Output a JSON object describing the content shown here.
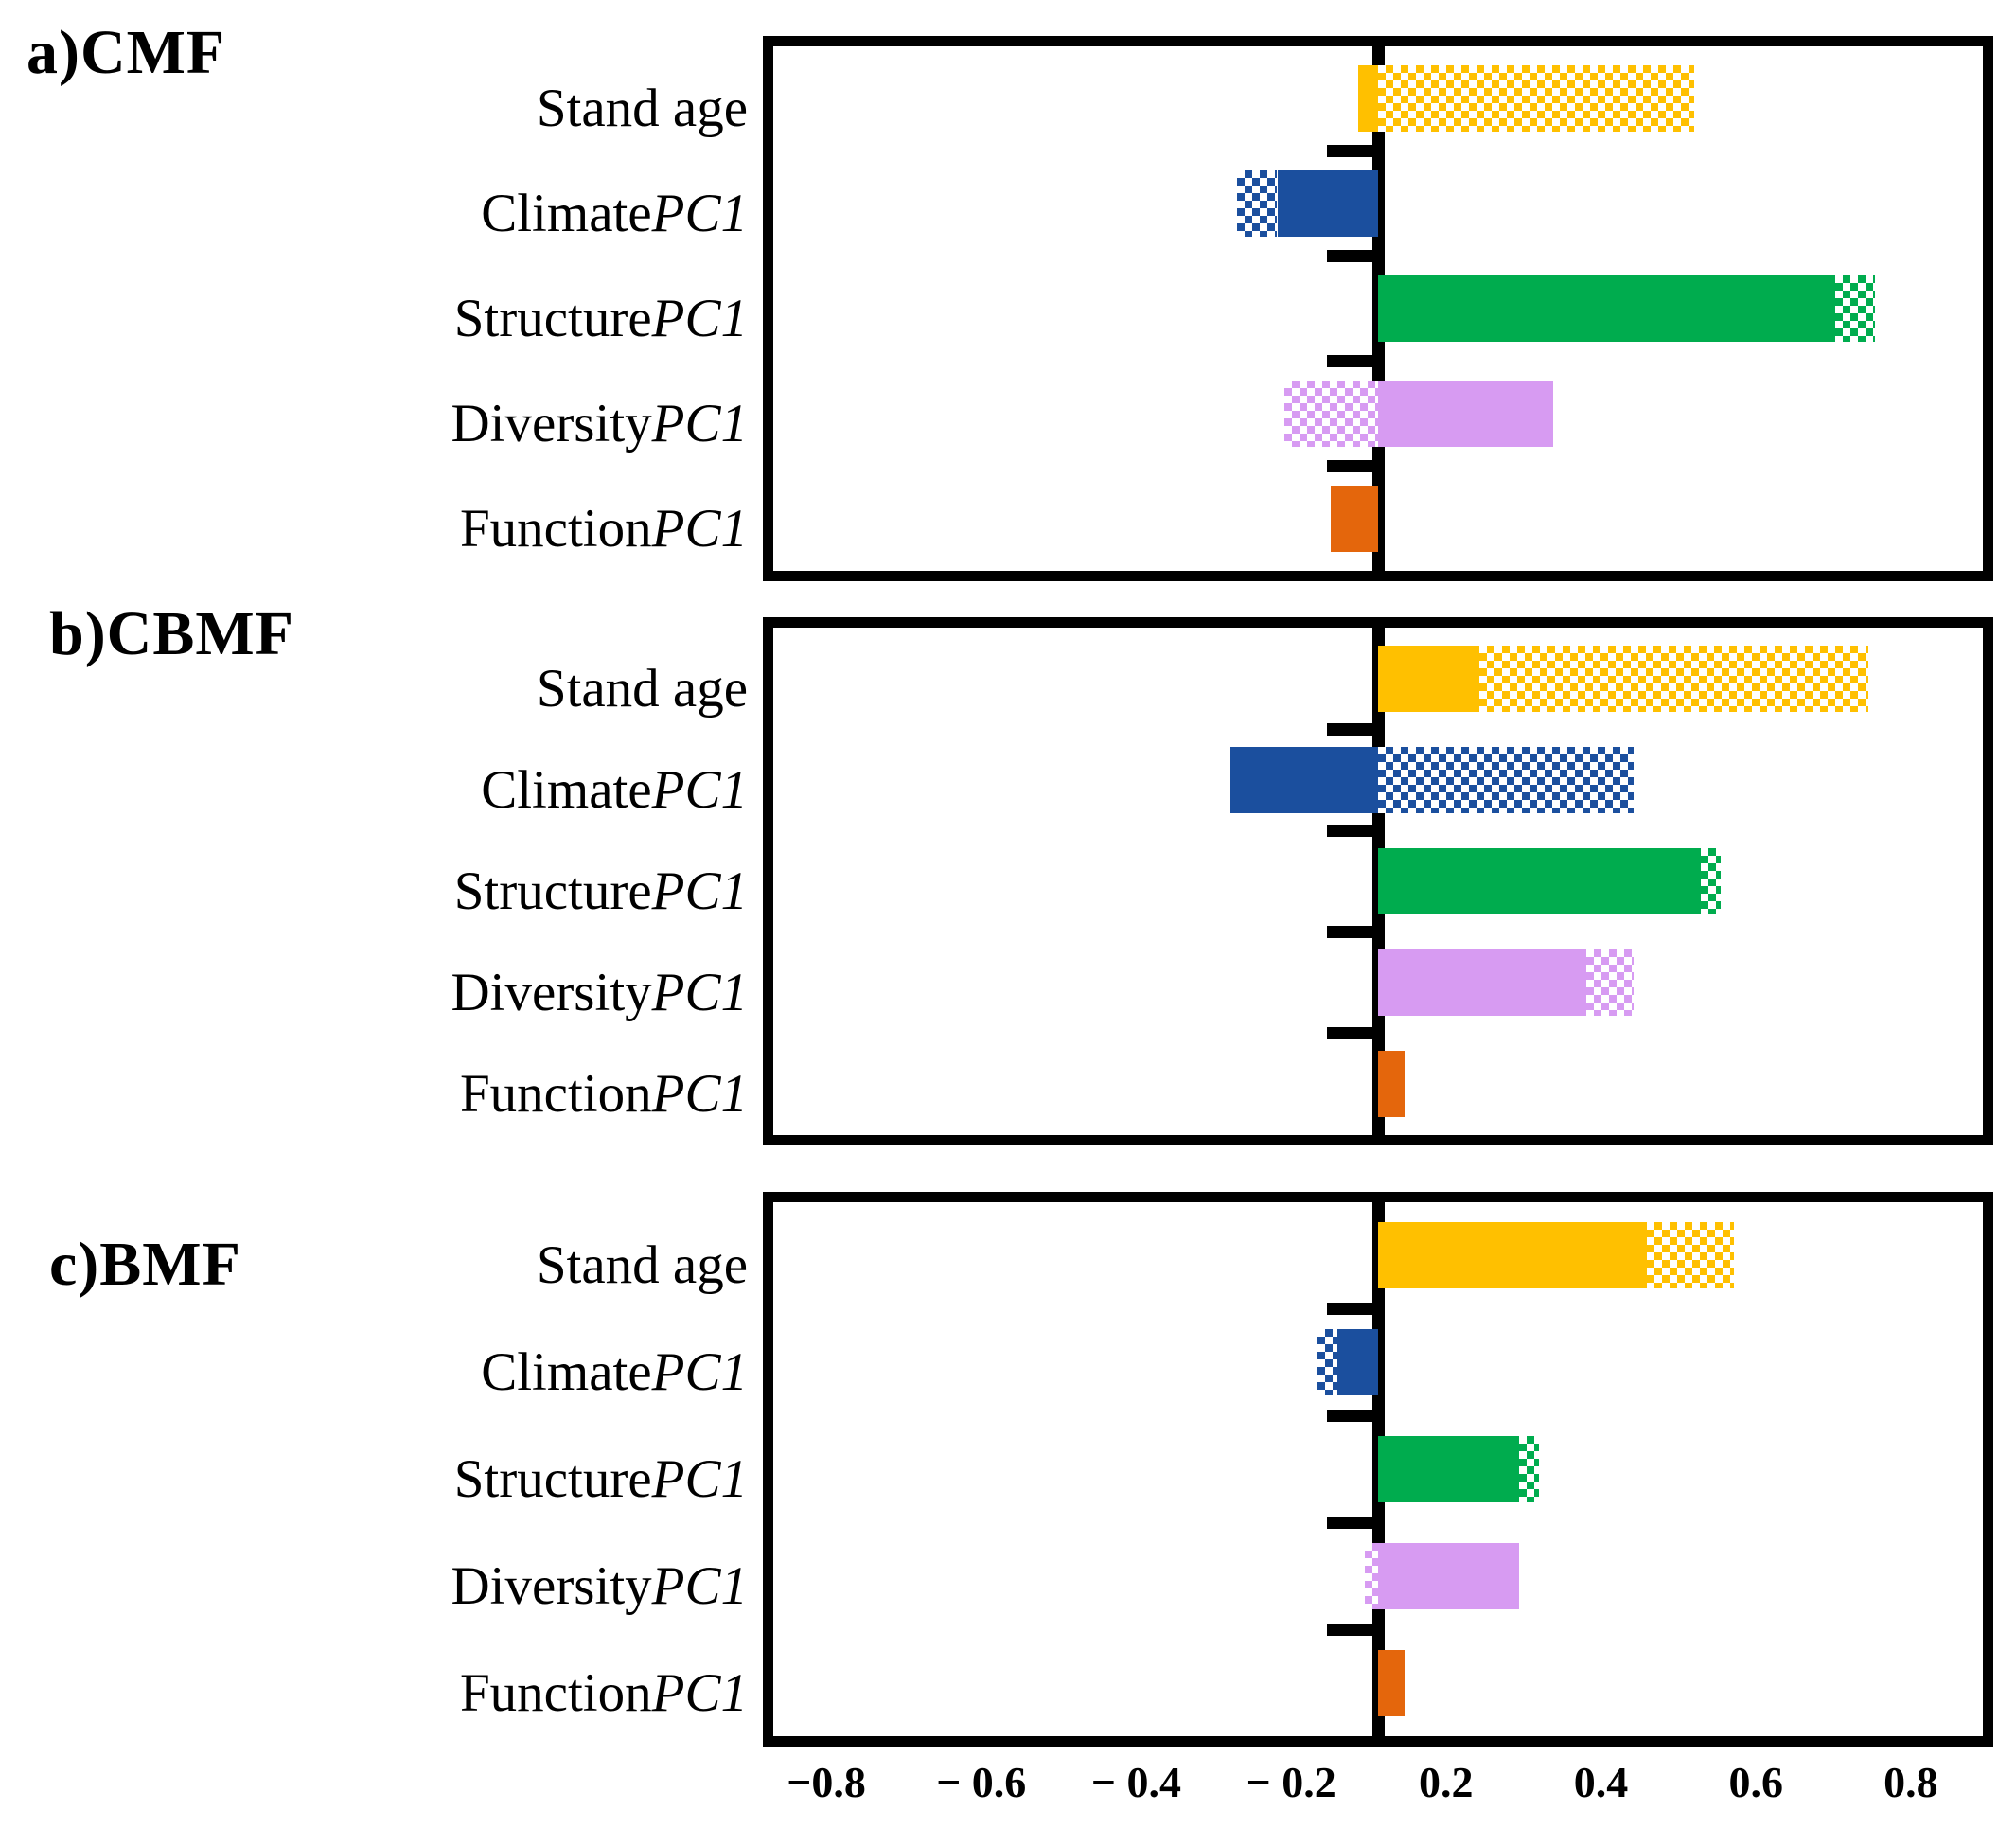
{
  "figure": {
    "background": "#ffffff",
    "panel_labels": {
      "a": "a)CMF",
      "b": "b)CBMF",
      "c": "c)BMF"
    }
  },
  "colors": {
    "gold": "#FFC000",
    "blue": "#1B4F9E",
    "green": "#00AC4E",
    "violet": "#D79BF2",
    "orange": "#E4660C",
    "axis_black": "#000000"
  },
  "chart_data": {
    "type": "bar",
    "orientation": "horizontal",
    "xlim": [
      -0.9,
      0.9
    ],
    "x_tick_labels": [
      "−0.8",
      "− 0.6",
      "− 0.4",
      "− 0.2",
      "0.2",
      "0.4",
      "0.6",
      "0.8"
    ],
    "x_tick_values": [
      -0.8,
      -0.6,
      -0.4,
      -0.2,
      0.2,
      0.4,
      0.6,
      0.8
    ],
    "grid": false,
    "legend": "none",
    "bar_styles": [
      "solid",
      "hatched"
    ],
    "categories": [
      {
        "prefix": "Stand age",
        "italic": ""
      },
      {
        "prefix": "Climate",
        "italic": "PC1"
      },
      {
        "prefix": "Structure",
        "italic": "PC1"
      },
      {
        "prefix": "Diversity",
        "italic": "PC1"
      },
      {
        "prefix": "Function",
        "italic": "PC1"
      }
    ],
    "panels": [
      {
        "id": "a",
        "label": "a)CMF",
        "bars": [
          {
            "category": "Stand age",
            "color_key": "gold",
            "segments": [
              {
                "style": "solid",
                "from": -0.03,
                "to": 0
              },
              {
                "style": "hatched",
                "from": 0,
                "to": 0.47
              }
            ]
          },
          {
            "category": "ClimatePC1",
            "color_key": "blue",
            "segments": [
              {
                "style": "hatched",
                "from": -0.21,
                "to": -0.15
              },
              {
                "style": "solid",
                "from": -0.15,
                "to": 0
              }
            ]
          },
          {
            "category": "StructurePC1",
            "color_key": "green",
            "segments": [
              {
                "style": "solid",
                "from": 0,
                "to": 0.68
              },
              {
                "style": "hatched",
                "from": 0.68,
                "to": 0.74
              }
            ]
          },
          {
            "category": "DiversityPC1",
            "color_key": "violet",
            "segments": [
              {
                "style": "hatched",
                "from": -0.14,
                "to": 0
              },
              {
                "style": "solid",
                "from": 0,
                "to": 0.26
              }
            ]
          },
          {
            "category": "FunctionPC1",
            "color_key": "orange",
            "segments": [
              {
                "style": "solid",
                "from": -0.07,
                "to": 0
              }
            ]
          }
        ]
      },
      {
        "id": "b",
        "label": "b)CBMF",
        "bars": [
          {
            "category": "Stand age",
            "color_key": "gold",
            "segments": [
              {
                "style": "solid",
                "from": 0,
                "to": 0.15
              },
              {
                "style": "hatched",
                "from": 0.15,
                "to": 0.73
              }
            ]
          },
          {
            "category": "ClimatePC1",
            "color_key": "blue",
            "segments": [
              {
                "style": "solid",
                "from": -0.22,
                "to": 0
              },
              {
                "style": "hatched",
                "from": 0,
                "to": 0.38
              }
            ]
          },
          {
            "category": "StructurePC1",
            "color_key": "green",
            "segments": [
              {
                "style": "solid",
                "from": 0,
                "to": 0.48
              },
              {
                "style": "hatched",
                "from": 0.48,
                "to": 0.51
              }
            ]
          },
          {
            "category": "DiversityPC1",
            "color_key": "violet",
            "segments": [
              {
                "style": "solid",
                "from": 0,
                "to": 0.31
              },
              {
                "style": "hatched",
                "from": 0.31,
                "to": 0.38
              }
            ]
          },
          {
            "category": "FunctionPC1",
            "color_key": "orange",
            "segments": [
              {
                "style": "solid",
                "from": 0,
                "to": 0.04
              }
            ]
          }
        ]
      },
      {
        "id": "c",
        "label": "c)BMF",
        "bars": [
          {
            "category": "Stand age",
            "color_key": "gold",
            "segments": [
              {
                "style": "solid",
                "from": 0,
                "to": 0.4
              },
              {
                "style": "hatched",
                "from": 0.4,
                "to": 0.53
              }
            ]
          },
          {
            "category": "ClimatePC1",
            "color_key": "blue",
            "segments": [
              {
                "style": "hatched",
                "from": -0.09,
                "to": -0.06
              },
              {
                "style": "solid",
                "from": -0.06,
                "to": 0
              }
            ]
          },
          {
            "category": "StructurePC1",
            "color_key": "green",
            "segments": [
              {
                "style": "solid",
                "from": 0,
                "to": 0.21
              },
              {
                "style": "hatched",
                "from": 0.21,
                "to": 0.24
              }
            ]
          },
          {
            "category": "DiversityPC1",
            "color_key": "violet",
            "segments": [
              {
                "style": "hatched",
                "from": -0.02,
                "to": 0
              },
              {
                "style": "solid",
                "from": 0,
                "to": 0.21
              }
            ]
          },
          {
            "category": "FunctionPC1",
            "color_key": "orange",
            "segments": [
              {
                "style": "solid",
                "from": 0,
                "to": 0.04
              }
            ]
          }
        ]
      }
    ]
  }
}
